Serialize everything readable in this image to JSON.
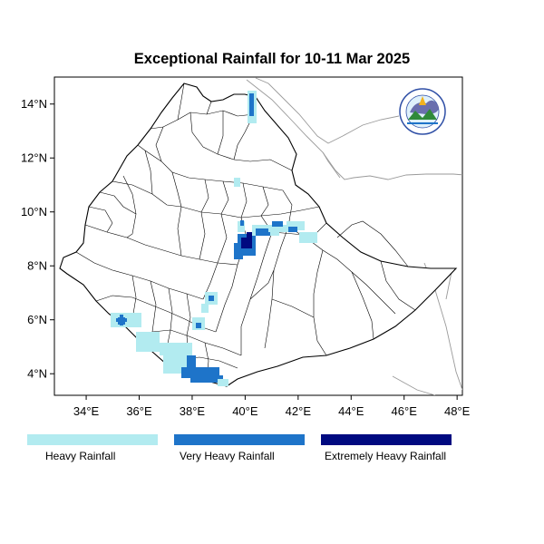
{
  "title": "Exceptional Rainfall for 10-11 Mar 2025",
  "map": {
    "lon_range": [
      32.8,
      48.2
    ],
    "lat_range": [
      3.2,
      15.0
    ],
    "x_ticks": [
      {
        "value": 34,
        "label": "34°E"
      },
      {
        "value": 36,
        "label": "36°E"
      },
      {
        "value": 38,
        "label": "38°E"
      },
      {
        "value": 40,
        "label": "40°E"
      },
      {
        "value": 42,
        "label": "42°E"
      },
      {
        "value": 44,
        "label": "44°E"
      },
      {
        "value": 46,
        "label": "46°E"
      },
      {
        "value": 48,
        "label": "48°E"
      }
    ],
    "y_ticks": [
      {
        "value": 4,
        "label": "4°N"
      },
      {
        "value": 6,
        "label": "6°N"
      },
      {
        "value": 8,
        "label": "8°N"
      },
      {
        "value": 10,
        "label": "10°N"
      },
      {
        "value": 12,
        "label": "12°N"
      },
      {
        "value": 14,
        "label": "14°N"
      }
    ],
    "logo_icon": "ethiopian-meteorology-institute-logo"
  },
  "legend": [
    {
      "label": "Heavy Rainfall",
      "color": "#b2ebf0"
    },
    {
      "label": "Very Heavy Rainfall",
      "color": "#1e74c9"
    },
    {
      "label": "Extremely Heavy Rainfall",
      "color": "#000a80"
    }
  ]
}
